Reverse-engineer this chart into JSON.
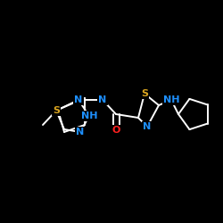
{
  "background_color": "#000000",
  "bond_color": "#ffffff",
  "atom_colors": {
    "S": "#DAA520",
    "N": "#1E90FF",
    "O": "#FF2020",
    "C": "#ffffff"
  },
  "figsize": [
    2.5,
    2.5
  ],
  "dpi": 100
}
